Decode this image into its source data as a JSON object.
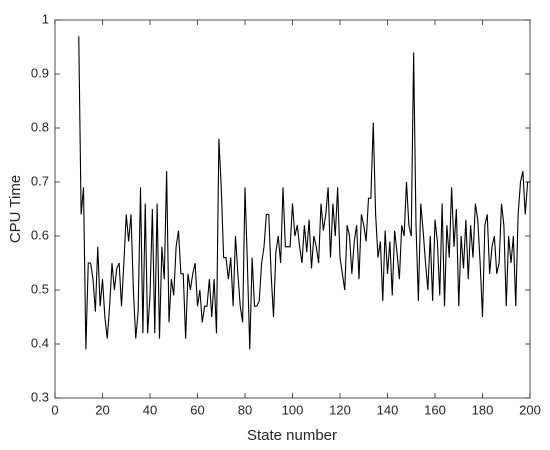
{
  "chart_data": {
    "type": "line",
    "xlabel": "State number",
    "ylabel": "CPU Time",
    "x": [
      10,
      11,
      12,
      13,
      14,
      15,
      16,
      17,
      18,
      19,
      20,
      21,
      22,
      23,
      24,
      25,
      26,
      27,
      28,
      29,
      30,
      31,
      32,
      33,
      34,
      35,
      36,
      37,
      38,
      39,
      40,
      41,
      42,
      43,
      44,
      45,
      46,
      47,
      48,
      49,
      50,
      51,
      52,
      53,
      54,
      55,
      56,
      57,
      58,
      59,
      60,
      61,
      62,
      63,
      64,
      65,
      66,
      67,
      68,
      69,
      70,
      71,
      72,
      73,
      74,
      75,
      76,
      77,
      78,
      79,
      80,
      81,
      82,
      83,
      84,
      85,
      86,
      87,
      88,
      89,
      90,
      91,
      92,
      93,
      94,
      95,
      96,
      97,
      98,
      99,
      100,
      101,
      102,
      103,
      104,
      105,
      106,
      107,
      108,
      109,
      110,
      111,
      112,
      113,
      114,
      115,
      116,
      117,
      118,
      119,
      120,
      121,
      122,
      123,
      124,
      125,
      126,
      127,
      128,
      129,
      130,
      131,
      132,
      133,
      134,
      135,
      136,
      137,
      138,
      139,
      140,
      141,
      142,
      143,
      144,
      145,
      146,
      147,
      148,
      149,
      150,
      151,
      152,
      153,
      154,
      155,
      156,
      157,
      158,
      159,
      160,
      161,
      162,
      163,
      164,
      165,
      166,
      167,
      168,
      169,
      170,
      171,
      172,
      173,
      174,
      175,
      176,
      177,
      178,
      179,
      180,
      181,
      182,
      183,
      184,
      185,
      186,
      187,
      188,
      189,
      190,
      191,
      192,
      193,
      194,
      195,
      196,
      197,
      198,
      199,
      200
    ],
    "series": [
      {
        "name": "CPU Time",
        "color": "#000000",
        "values": [
          0.97,
          0.64,
          0.69,
          0.39,
          0.55,
          0.55,
          0.52,
          0.46,
          0.58,
          0.47,
          0.52,
          0.45,
          0.41,
          0.47,
          0.55,
          0.5,
          0.54,
          0.55,
          0.47,
          0.55,
          0.64,
          0.59,
          0.64,
          0.5,
          0.41,
          0.46,
          0.69,
          0.42,
          0.66,
          0.42,
          0.49,
          0.65,
          0.42,
          0.66,
          0.41,
          0.58,
          0.52,
          0.72,
          0.44,
          0.52,
          0.49,
          0.58,
          0.61,
          0.53,
          0.53,
          0.41,
          0.53,
          0.5,
          0.53,
          0.55,
          0.47,
          0.5,
          0.44,
          0.47,
          0.47,
          0.52,
          0.45,
          0.52,
          0.42,
          0.78,
          0.69,
          0.56,
          0.56,
          0.52,
          0.56,
          0.47,
          0.6,
          0.53,
          0.47,
          0.44,
          0.69,
          0.55,
          0.39,
          0.56,
          0.47,
          0.47,
          0.48,
          0.55,
          0.58,
          0.64,
          0.64,
          0.53,
          0.45,
          0.57,
          0.6,
          0.55,
          0.69,
          0.58,
          0.58,
          0.58,
          0.66,
          0.6,
          0.62,
          0.58,
          0.55,
          0.62,
          0.57,
          0.63,
          0.54,
          0.6,
          0.58,
          0.55,
          0.66,
          0.61,
          0.64,
          0.69,
          0.56,
          0.66,
          0.6,
          0.69,
          0.56,
          0.53,
          0.5,
          0.62,
          0.6,
          0.53,
          0.59,
          0.62,
          0.52,
          0.64,
          0.62,
          0.59,
          0.67,
          0.67,
          0.81,
          0.64,
          0.56,
          0.59,
          0.48,
          0.61,
          0.53,
          0.59,
          0.49,
          0.61,
          0.57,
          0.52,
          0.62,
          0.6,
          0.7,
          0.62,
          0.6,
          0.94,
          0.62,
          0.48,
          0.66,
          0.61,
          0.55,
          0.5,
          0.6,
          0.48,
          0.63,
          0.59,
          0.49,
          0.66,
          0.47,
          0.62,
          0.56,
          0.69,
          0.58,
          0.65,
          0.47,
          0.6,
          0.54,
          0.63,
          0.52,
          0.62,
          0.56,
          0.66,
          0.63,
          0.55,
          0.45,
          0.62,
          0.64,
          0.53,
          0.58,
          0.6,
          0.53,
          0.55,
          0.66,
          0.62,
          0.47,
          0.6,
          0.55,
          0.6,
          0.47,
          0.64,
          0.7,
          0.72,
          0.64,
          0.7,
          0.7
        ]
      }
    ],
    "xlim": [
      0,
      200
    ],
    "xticks": [
      0,
      20,
      40,
      60,
      80,
      100,
      120,
      140,
      160,
      180,
      200
    ],
    "ylim": [
      0.3,
      1
    ],
    "yticks": [
      0.3,
      0.4,
      0.5,
      0.6,
      0.7,
      0.8,
      0.9,
      1
    ]
  }
}
